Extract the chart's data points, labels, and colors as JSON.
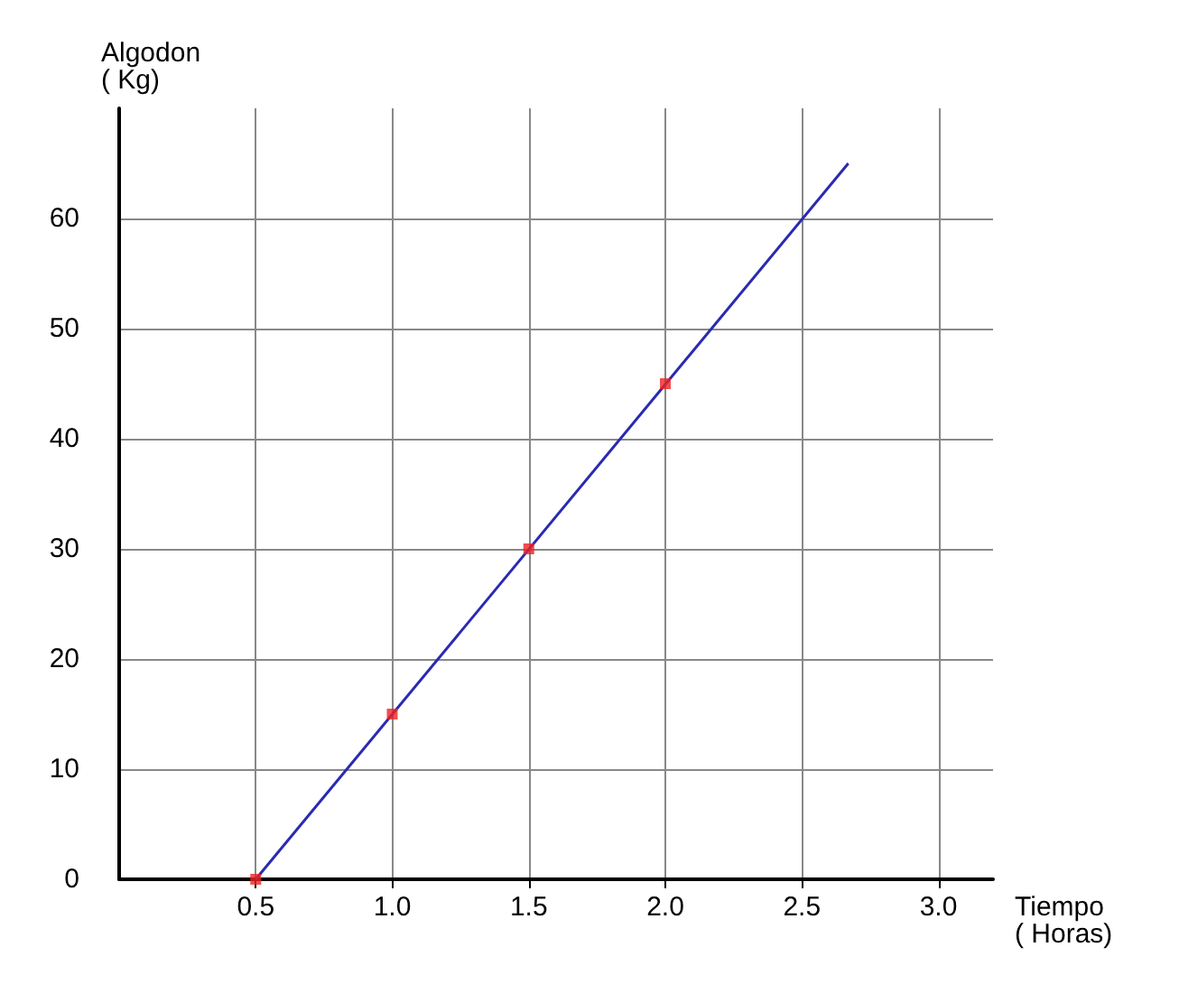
{
  "chart_data": {
    "type": "line",
    "xlabel": "Tiempo\n( Horas)",
    "ylabel": "Algodon\n( Kg)",
    "xlim": [
      0,
      3.2
    ],
    "ylim": [
      0,
      70
    ],
    "xticks": [
      0.5,
      {
        "value": 1,
        "label": "1.0"
      },
      1.5,
      {
        "value": 2,
        "label": "2.0"
      },
      2.5,
      {
        "value": 3,
        "label": "3.0"
      }
    ],
    "yticks": [
      0,
      10,
      20,
      30,
      40,
      50,
      60
    ],
    "grid": true,
    "series": [
      {
        "x": [
          0.5,
          2.67
        ],
        "values": [
          0,
          65
        ],
        "color": "#2a2ab0",
        "marker": "none",
        "line_style": "solid"
      },
      {
        "type": "scatter",
        "x": [
          0.5,
          1.0,
          1.5,
          2.0
        ],
        "values": [
          0,
          15,
          30,
          45
        ],
        "color": "#ee2222",
        "marker": "square"
      }
    ]
  }
}
